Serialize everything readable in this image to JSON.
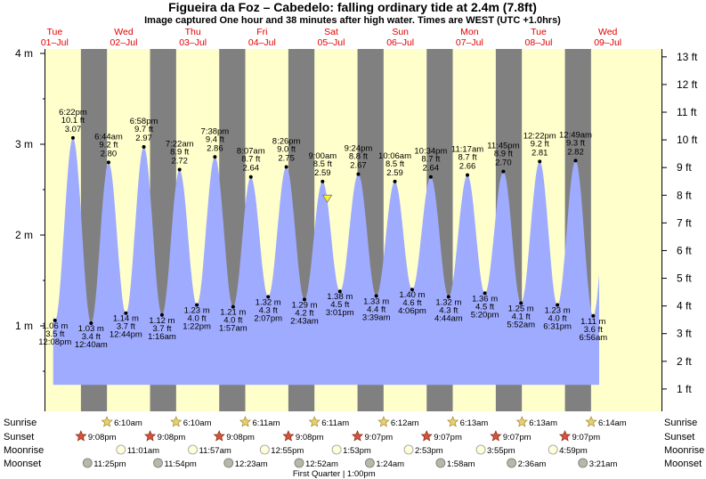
{
  "title": "Figueira da Foz – Cabedelo: falling  ordinary tide at 2.4m (7.8ft)",
  "subtitle": "Image captured One hour and 38 minutes after high water. Times are WEST (UTC +1.0hrs)",
  "days": [
    {
      "dow": "Tue",
      "date": "01–Jul"
    },
    {
      "dow": "Wed",
      "date": "02–Jul"
    },
    {
      "dow": "Thu",
      "date": "03–Jul"
    },
    {
      "dow": "Fri",
      "date": "04–Jul"
    },
    {
      "dow": "Sat",
      "date": "05–Jul"
    },
    {
      "dow": "Sun",
      "date": "06–Jul"
    },
    {
      "dow": "Mon",
      "date": "07–Jul"
    },
    {
      "dow": "Tue",
      "date": "08–Jul"
    },
    {
      "dow": "Wed",
      "date": "09–Jul"
    }
  ],
  "left_axis_labels": [
    "4 m",
    "3 m",
    "2 m",
    "1 m"
  ],
  "right_axis_labels": [
    "13 ft",
    "12 ft",
    "11 ft",
    "10 ft",
    "9 ft",
    "8 ft",
    "7 ft",
    "6 ft",
    "5 ft",
    "4 ft",
    "3 ft",
    "2 ft",
    "1 ft"
  ],
  "row_labels": {
    "sunrise": "Sunrise",
    "sunset": "Sunset",
    "moonrise": "Moonrise",
    "moonset": "Moonset"
  },
  "sunrise_times": [
    "6:10am",
    "6:10am",
    "6:11am",
    "6:11am",
    "6:12am",
    "6:13am",
    "6:13am",
    "6:14am"
  ],
  "sunset_times": [
    "9:08pm",
    "9:08pm",
    "9:08pm",
    "9:08pm",
    "9:07pm",
    "9:07pm",
    "9:07pm",
    "9:07pm"
  ],
  "moonrise_times": [
    "11:01am",
    "11:57am",
    "12:55pm",
    "1:53pm",
    "2:53pm",
    "3:55pm",
    "4:59pm"
  ],
  "moonset_times": [
    "11:25pm",
    "11:54pm",
    "12:23am",
    "12:52am",
    "1:24am",
    "1:58am",
    "2:36am",
    "3:21am"
  ],
  "moon_phase_note": "First Quarter | 1:00pm",
  "colors": {
    "day_bg": "#ffffcc",
    "night_bg": "#808080",
    "water": "#9fabfe",
    "day_label": "#e00000",
    "now_marker": "#ffee33"
  },
  "chart_data": {
    "type": "area",
    "title": "Figueira da Foz – Cabedelo: falling  ordinary tide at 2.4m (7.8ft)",
    "x_unit": "hours from 00:00 Tue 01-Jul (WEST)",
    "ylabel_left": "m",
    "ylabel_right": "ft",
    "ylim": [
      0,
      4
    ],
    "current": {
      "height_m": 2.4,
      "height_ft": 7.8,
      "state": "falling"
    },
    "extremes": [
      {
        "type": "low",
        "time": "12:08 pm",
        "height_m": 1.06,
        "height_ft": "3.5 ft"
      },
      {
        "type": "high",
        "time": "6:22 pm",
        "height_m": 3.07,
        "height_ft": "10.1 ft"
      },
      {
        "type": "low",
        "time": "12:40 am",
        "height_m": 1.03,
        "height_ft": "3.4 ft"
      },
      {
        "type": "high",
        "time": "6:44 am",
        "height_m": 2.8,
        "height_ft": "9.2 ft"
      },
      {
        "type": "low",
        "time": "12:44 pm",
        "height_m": 1.14,
        "height_ft": "3.7 ft"
      },
      {
        "type": "high",
        "time": "6:58 pm",
        "height_m": 2.97,
        "height_ft": "9.7 ft"
      },
      {
        "type": "low",
        "time": "1:16 am",
        "height_m": 1.12,
        "height_ft": "3.7 ft"
      },
      {
        "type": "high",
        "time": "7:22 am",
        "height_m": 2.72,
        "height_ft": "8.9 ft"
      },
      {
        "type": "low",
        "time": "1:22 pm",
        "height_m": 1.23,
        "height_ft": "4.0 ft"
      },
      {
        "type": "high",
        "time": "7:38 pm",
        "height_m": 2.86,
        "height_ft": "9.4 ft"
      },
      {
        "type": "low",
        "time": "1:57 am",
        "height_m": 1.21,
        "height_ft": "4.0 ft"
      },
      {
        "type": "high",
        "time": "8:07 am",
        "height_m": 2.64,
        "height_ft": "8.7 ft"
      },
      {
        "type": "low",
        "time": "2:07 pm",
        "height_m": 1.32,
        "height_ft": "4.3 ft"
      },
      {
        "type": "high",
        "time": "8:26 pm",
        "height_m": 2.75,
        "height_ft": "9.0 ft"
      },
      {
        "type": "low",
        "time": "2:43 am",
        "height_m": 1.29,
        "height_ft": "4.2 ft"
      },
      {
        "type": "high",
        "time": "9:00 am",
        "height_m": 2.59,
        "height_ft": "8.5 ft"
      },
      {
        "type": "low",
        "time": "3:01 pm",
        "height_m": 1.38,
        "height_ft": "4.5 ft"
      },
      {
        "type": "high",
        "time": "9:24 pm",
        "height_m": 2.67,
        "height_ft": "8.8 ft"
      },
      {
        "type": "low",
        "time": "3:39 am",
        "height_m": 1.33,
        "height_ft": "4.4 ft"
      },
      {
        "type": "high",
        "time": "10:06 am",
        "height_m": 2.59,
        "height_ft": "8.5 ft"
      },
      {
        "type": "low",
        "time": "4:06 pm",
        "height_m": 1.4,
        "height_ft": "4.6 ft"
      },
      {
        "type": "high",
        "time": "10:34 pm",
        "height_m": 2.64,
        "height_ft": "8.7 ft"
      },
      {
        "type": "low",
        "time": "4:44 am",
        "height_m": 1.32,
        "height_ft": "4.3 ft"
      },
      {
        "type": "high",
        "time": "11:17 am",
        "height_m": 2.66,
        "height_ft": "8.7 ft"
      },
      {
        "type": "low",
        "time": "5:20 pm",
        "height_m": 1.36,
        "height_ft": "4.5 ft"
      },
      {
        "type": "high",
        "time": "11:45 pm",
        "height_m": 2.7,
        "height_ft": "8.9 ft"
      },
      {
        "type": "low",
        "time": "5:52 am",
        "height_m": 1.25,
        "height_ft": "4.1 ft"
      },
      {
        "type": "high",
        "time": "12:22 pm",
        "height_m": 2.81,
        "height_ft": "9.2 ft"
      },
      {
        "type": "low",
        "time": "6:31 pm",
        "height_m": 1.23,
        "height_ft": "4.0 ft"
      },
      {
        "type": "high",
        "time": "12:49 am",
        "height_m": 2.82,
        "height_ft": "9.3 ft"
      },
      {
        "type": "low",
        "time": "6:56 am",
        "height_m": 1.11,
        "height_ft": "3.6 ft"
      }
    ]
  }
}
